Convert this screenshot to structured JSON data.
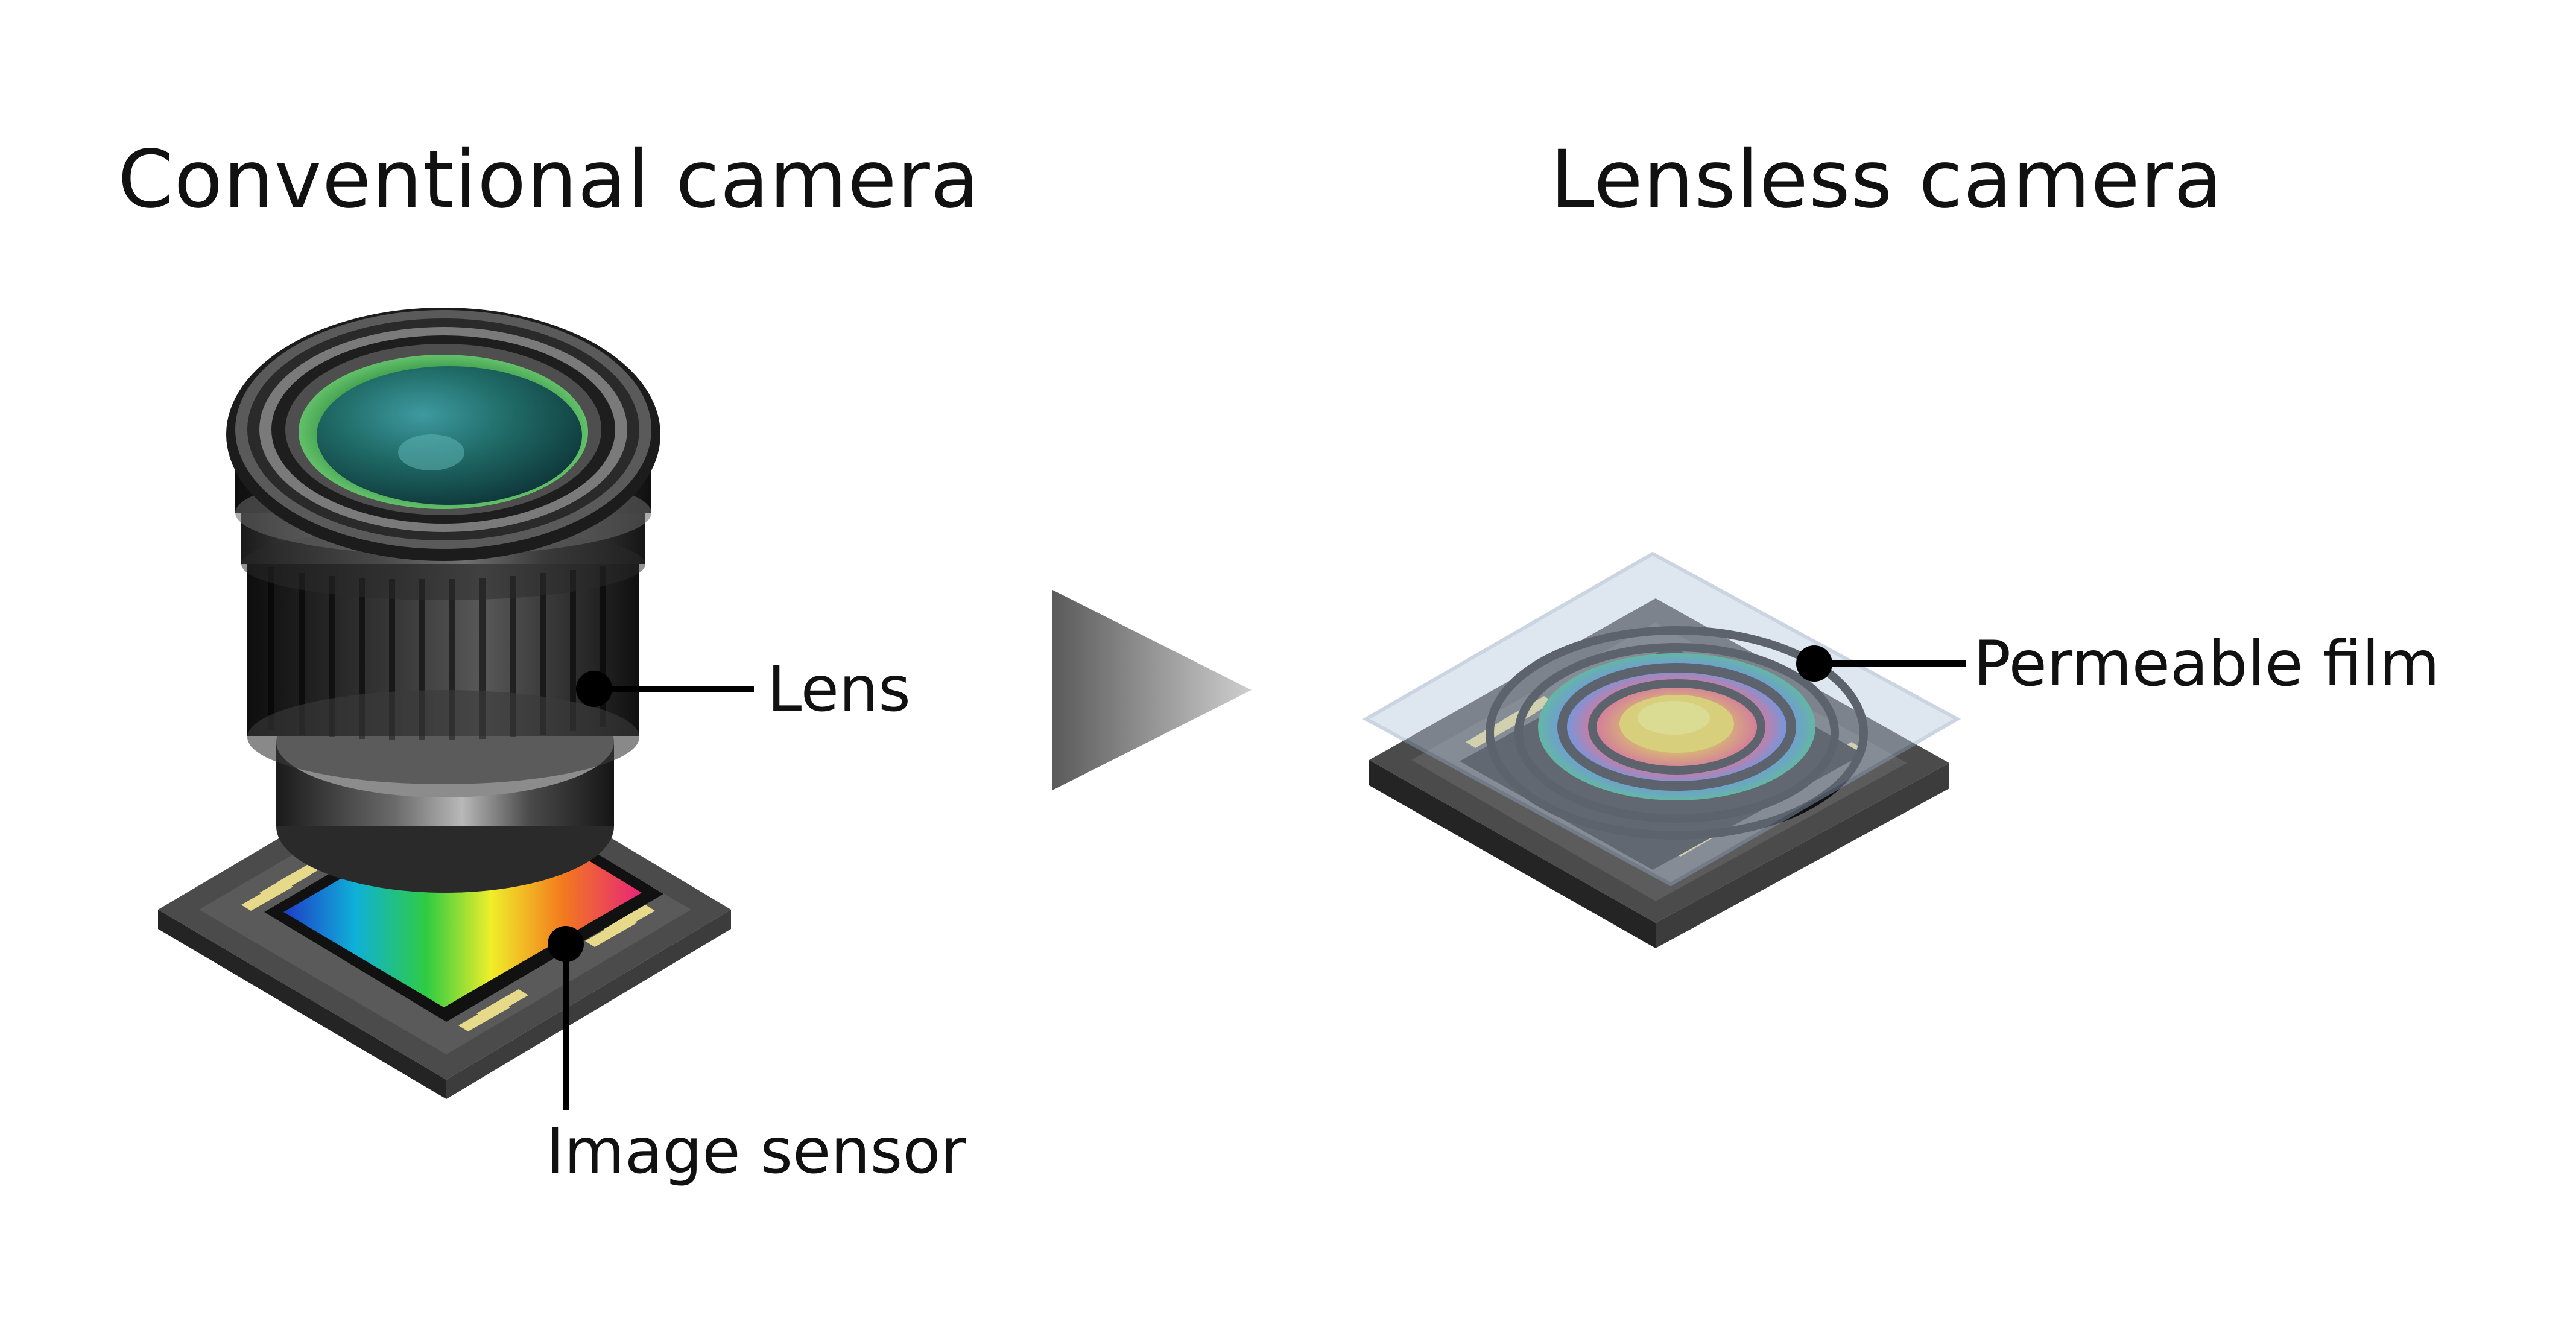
{
  "headings": {
    "conventional": "Conventional camera",
    "lensless": "Lensless camera"
  },
  "labels": {
    "lens": "Lens",
    "image_sensor": "Image sensor",
    "permeable_film": "Permeable film"
  },
  "icons": {
    "camera_lens": "camera-lens-icon",
    "image_sensor": "image-sensor-chip-icon",
    "arrow": "right-triangle-arrow-icon",
    "lensless_sensor": "lensless-sensor-chip-icon"
  },
  "colors": {
    "text": "#111111",
    "arrow_start": "#5a5a5a",
    "arrow_end": "#cfcfcf",
    "chip_body": "#3a3a3a",
    "film": "#b8c8dc",
    "lens_glass": "#1f7a58"
  }
}
